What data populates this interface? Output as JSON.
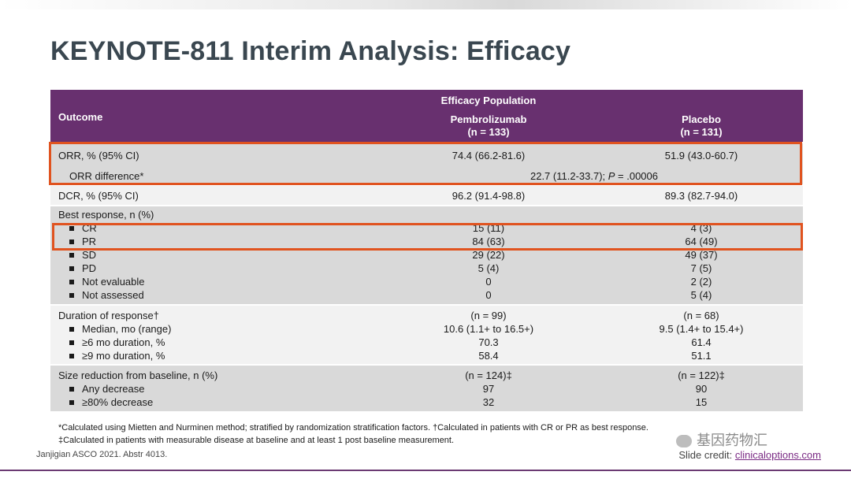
{
  "title": "KEYNOTE-811 Interim Analysis: Efficacy",
  "table": {
    "header": {
      "outcome": "Outcome",
      "group": "Efficacy Population",
      "col1_name": "Pembrolizumab",
      "col1_n": "(n = 133)",
      "col2_name": "Placebo",
      "col2_n": "(n = 131)"
    },
    "orr": {
      "label": "ORR, % (95% CI)",
      "pembro": "74.4 (66.2-81.6)",
      "placebo": "51.9 (43.0-60.7)",
      "diff_label": "ORR difference*",
      "diff_value_a": "22.7 (11.2-33.7); ",
      "diff_p": "P",
      "diff_value_b": " = .00006"
    },
    "dcr": {
      "label": "DCR, % (95% CI)",
      "pembro": "96.2 (91.4-98.8)",
      "placebo": "89.3 (82.7-94.0)"
    },
    "best_response": {
      "label": "Best response, n (%)",
      "rows": [
        {
          "label": "CR",
          "pembro": "15 (11)",
          "placebo": "4 (3)"
        },
        {
          "label": "PR",
          "pembro": "84 (63)",
          "placebo": "64 (49)"
        },
        {
          "label": "SD",
          "pembro": "29 (22)",
          "placebo": "49 (37)"
        },
        {
          "label": "PD",
          "pembro": "5 (4)",
          "placebo": "7 (5)"
        },
        {
          "label": "Not evaluable",
          "pembro": "0",
          "placebo": "2 (2)"
        },
        {
          "label": "Not assessed",
          "pembro": "0",
          "placebo": "5 (4)"
        }
      ]
    },
    "duration": {
      "label": "Duration of response†",
      "pembro_n": "(n = 99)",
      "placebo_n": "(n = 68)",
      "rows": [
        {
          "label": "Median, mo (range)",
          "pembro": "10.6 (1.1+ to 16.5+)",
          "placebo": "9.5 (1.4+ to 15.4+)"
        },
        {
          "label": "≥6 mo duration, %",
          "pembro": "70.3",
          "placebo": "61.4"
        },
        {
          "label": "≥9 mo duration, %",
          "pembro": "58.4",
          "placebo": "51.1"
        }
      ]
    },
    "size_reduction": {
      "label": "Size reduction from baseline, n (%)",
      "pembro_n": "(n = 124)‡",
      "placebo_n": "(n = 122)‡",
      "rows": [
        {
          "label": "Any decrease",
          "pembro": "97",
          "placebo": "90"
        },
        {
          "label": "≥80% decrease",
          "pembro": "32",
          "placebo": "15"
        }
      ]
    }
  },
  "footnotes": {
    "line1": "*Calculated using Mietten and Nurminen method; stratified by randomization stratification factors. †Calculated in patients with CR or PR as best response.",
    "line2": "‡Calculated in patients with measurable disease at baseline and at least 1 post baseline measurement."
  },
  "citation": "Janjigian ASCO 2021. Abstr 4013.",
  "credit": {
    "label": "Slide credit: ",
    "link": "clinicaloptions.com"
  },
  "watermark": "基因药物汇",
  "colors": {
    "header": "#68306f",
    "highlight": "#e0531f",
    "title": "#3a4750"
  }
}
